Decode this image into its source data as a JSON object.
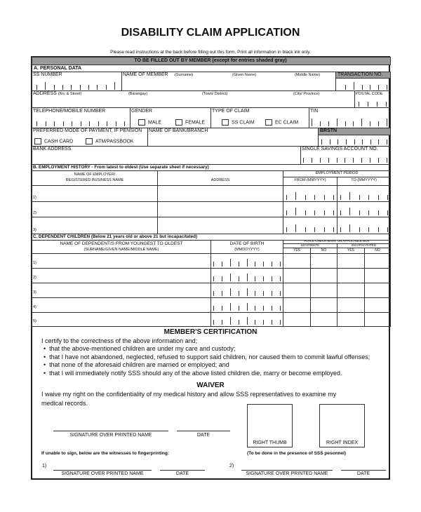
{
  "title": "DISABILITY CLAIM APPLICATION",
  "instructions": "Please read instructions at the back before filling out this form. Print all information in black ink only.",
  "banner": "TO BE FILLED OUT BY MEMBER (except for entries shaded gray)",
  "personal": {
    "heading": "A. PERSONAL DATA",
    "ss_number": "SS NUMBER",
    "name_of_member": "NAME OF MEMBER",
    "surname": "(Surname)",
    "given_name": "(Given Name)",
    "middle_name": "(Middle Name)",
    "transaction_no": "TRANSACTION NO.",
    "address": "ADDRESS",
    "no_street": "(No. & Street)",
    "barangay": "(Barangay)",
    "town": "(Town/ District)",
    "city": "(City/ Province)",
    "postal_code": "POSTAL CODE",
    "telephone": "TELEPHONE/MOBILE NUMBER",
    "gender": "GENDER",
    "male": "MALE",
    "female": "FEMALE",
    "type_of_claim": "TYPE OF CLAIM",
    "ss_claim": "SS CLAIM",
    "ec_claim": "EC CLAIM",
    "tin": "TIN",
    "payment_mode": "PREFERRED MODE OF PAYMENT, IF PENSION",
    "cash_card": "CASH CARD",
    "atm_passbook": "ATM/PASSBOOK",
    "bank_branch": "NAME OF BANK/BRANCH",
    "brstn": "BRSTN",
    "bank_address": "BANK ADDRESS",
    "savings_account": "SINGLE SAVINGS ACCOUNT NO."
  },
  "employment": {
    "heading": "B. EMPLOYMENT HISTORY - From latest to oldest (Use separate sheet if necessary)",
    "employer_1": "NAME OF EMPLOYER/",
    "employer_2": "REGISTERED BUSINESS NAME",
    "address": "ADDRESS",
    "period": "EMPLOYMENT PERIOD",
    "from": "FROM (MMYYYY)",
    "to": "TO (MMYYYY)",
    "rows": [
      "1)",
      "2)",
      "3)"
    ]
  },
  "dependents": {
    "heading": "C. DEPENDENT CHILDREN (Below 21 years old or above 21 but incapacitated)",
    "name_1": "NAME OF DEPENDENT/S FROM YOUNGEST TO OLDEST",
    "name_2": "(SURNAME/GIVEN NAME/MIDDLE NAME)",
    "dob": "DATE OF BIRTH",
    "dob_fmt": "(MMDDYYYY)",
    "check_note": "PLACE CHECK MARK ON APPLICABLE BOX",
    "legitimate": "LEGITIMATE",
    "incapacitated": "INCAPACITATED",
    "yes": "YES",
    "no": "NO",
    "rows": [
      "1)",
      "2)",
      "3)",
      "4)",
      "5)"
    ]
  },
  "certification": {
    "heading": "MEMBER'S CERTIFICATION",
    "intro": "I certify to the correctness of the above information and;",
    "bullets": [
      "that the above-mentioned children are under my care and custody;",
      "that I have not abandoned, neglected, refused to support said children, nor caused them to commit lawful offenses;",
      "that none of the aforesaid children are married or employed; and",
      "that I will immediately notify SSS should any of the above listed children die, marry or become employed."
    ]
  },
  "waiver": {
    "heading": "WAIVER",
    "text": "I waive my right on the confidentiality of my medical history and allow SSS representatives to examine my medical records.",
    "signature": "SIGNATURE OVER PRINTED NAME",
    "date": "DATE",
    "right_thumb": "RIGHT THUMB",
    "right_index": "RIGHT INDEX",
    "witness_note": "If unable to sign, below are the witnesses to fingerprinting:",
    "presence_note": "(To be done in the presence of SSS pesonnel)",
    "w1": "1)",
    "w2": "2)"
  }
}
